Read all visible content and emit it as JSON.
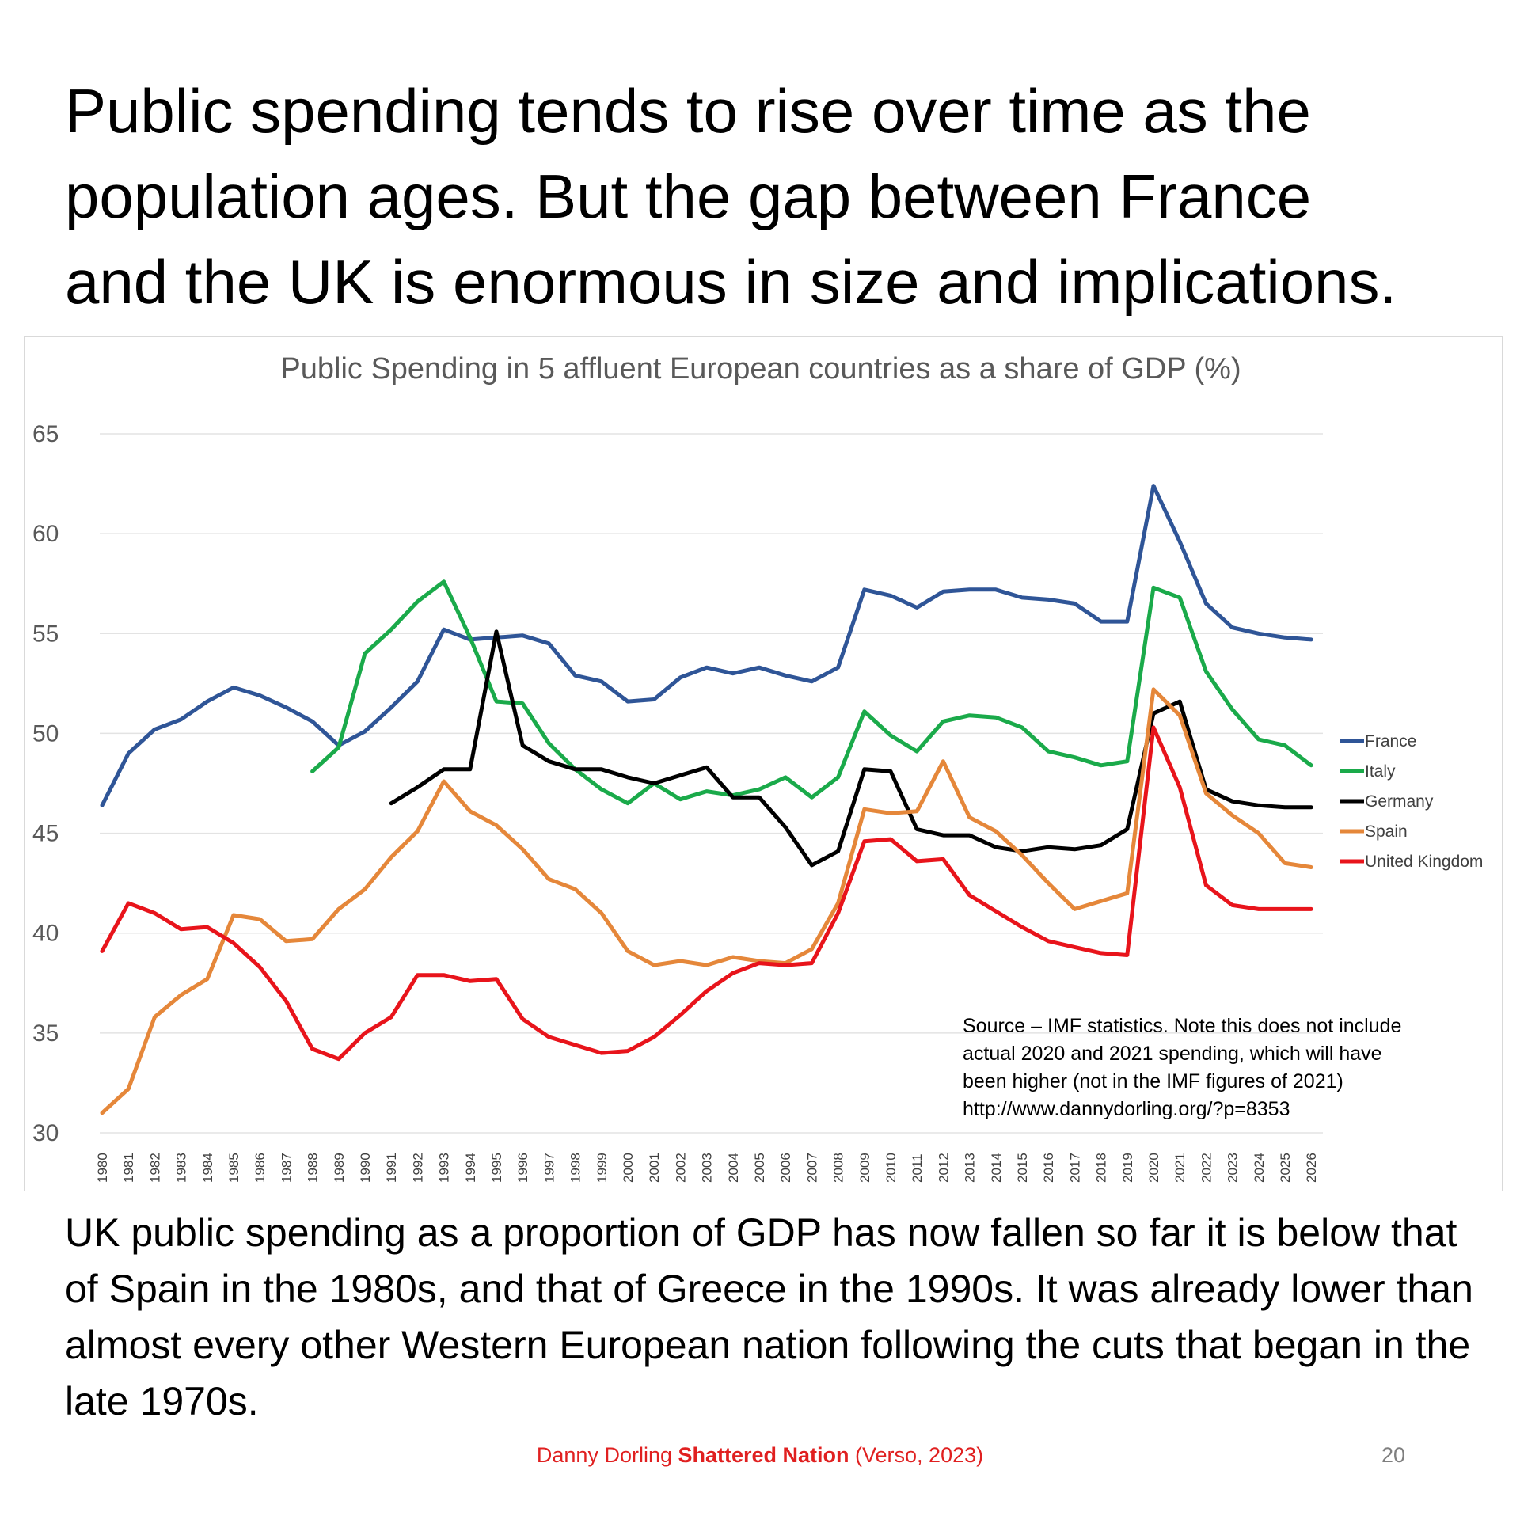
{
  "headline": {
    "line1": "Public spending tends to rise over time as the",
    "line2": "population ages. But the gap between France",
    "line3": "and the UK is enormous in size and implications."
  },
  "body_text": "UK public spending as a proportion of GDP has now fallen so far it is below that of Spain in the 1980s, and that of Greece in the 1990s. It was already lower than almost every other Western European nation following the cuts that began in the late 1970s.",
  "footer": {
    "author": "Danny Dorling ",
    "book": "Shattered Nation",
    "publisher": " (Verso, 2023)",
    "page_number": "20"
  },
  "colors": {
    "France": "#2f5597",
    "Italy": "#1aaa4a",
    "Germany": "#000000",
    "Spain": "#e5873a",
    "United Kingdom": "#e8141b",
    "footer_red": "#e02020"
  },
  "chart_data": {
    "type": "line",
    "title": "Public Spending in 5 affluent European countries as a share of GDP (%)",
    "xlabel": "",
    "ylabel": "",
    "ylim": [
      30,
      65
    ],
    "yticks": [
      "30",
      "35",
      "40",
      "45",
      "50",
      "55",
      "60",
      "65"
    ],
    "grid": true,
    "legend_position": "right",
    "x": [
      "1980",
      "1981",
      "1982",
      "1983",
      "1984",
      "1985",
      "1986",
      "1987",
      "1988",
      "1989",
      "1990",
      "1991",
      "1992",
      "1993",
      "1994",
      "1995",
      "1996",
      "1997",
      "1998",
      "1999",
      "2000",
      "2001",
      "2002",
      "2003",
      "2004",
      "2005",
      "2006",
      "2007",
      "2008",
      "2009",
      "2010",
      "2011",
      "2012",
      "2013",
      "2014",
      "2015",
      "2016",
      "2017",
      "2018",
      "2019",
      "2020",
      "2021",
      "2022",
      "2023",
      "2024",
      "2025",
      "2026"
    ],
    "series": [
      {
        "name": "France",
        "values": [
          46.4,
          49.0,
          50.2,
          50.7,
          51.6,
          52.3,
          51.9,
          51.3,
          50.6,
          49.4,
          50.1,
          51.3,
          52.6,
          55.2,
          54.7,
          54.8,
          54.9,
          54.5,
          52.9,
          52.6,
          51.6,
          51.7,
          52.8,
          53.3,
          53.0,
          53.3,
          52.9,
          52.6,
          53.3,
          57.2,
          56.9,
          56.3,
          57.1,
          57.2,
          57.2,
          56.8,
          56.7,
          56.5,
          55.6,
          55.6,
          62.4,
          59.6,
          56.5,
          55.3,
          55.0,
          54.8,
          54.7
        ]
      },
      {
        "name": "Italy",
        "values": [
          null,
          null,
          null,
          null,
          null,
          null,
          null,
          null,
          48.1,
          49.3,
          54.0,
          55.2,
          56.6,
          57.6,
          54.8,
          51.6,
          51.5,
          49.5,
          48.2,
          47.2,
          46.5,
          47.5,
          46.7,
          47.1,
          46.9,
          47.2,
          47.8,
          46.8,
          47.8,
          51.1,
          49.9,
          49.1,
          50.6,
          50.9,
          50.8,
          50.3,
          49.1,
          48.8,
          48.4,
          48.6,
          57.3,
          56.8,
          53.1,
          51.2,
          49.7,
          49.4,
          48.4
        ]
      },
      {
        "name": "Germany",
        "values": [
          null,
          null,
          null,
          null,
          null,
          null,
          null,
          null,
          null,
          null,
          null,
          46.5,
          47.3,
          48.2,
          48.2,
          55.1,
          49.4,
          48.6,
          48.2,
          48.2,
          47.8,
          47.5,
          47.9,
          48.3,
          46.8,
          46.8,
          45.3,
          43.4,
          44.1,
          48.2,
          48.1,
          45.2,
          44.9,
          44.9,
          44.3,
          44.1,
          44.3,
          44.2,
          44.4,
          45.2,
          51.0,
          51.6,
          47.2,
          46.6,
          46.4,
          46.3,
          46.3
        ]
      },
      {
        "name": "Spain",
        "values": [
          31.0,
          32.2,
          35.8,
          36.9,
          37.7,
          40.9,
          40.7,
          39.6,
          39.7,
          41.2,
          42.2,
          43.8,
          45.1,
          47.6,
          46.1,
          45.4,
          44.2,
          42.7,
          42.2,
          41.0,
          39.1,
          38.4,
          38.6,
          38.4,
          38.8,
          38.6,
          38.5,
          39.2,
          41.5,
          46.2,
          46.0,
          46.1,
          48.6,
          45.8,
          45.1,
          43.9,
          42.5,
          41.2,
          41.6,
          42.0,
          52.2,
          50.9,
          47.0,
          45.9,
          45.0,
          43.5,
          43.3
        ]
      },
      {
        "name": "United Kingdom",
        "values": [
          39.1,
          41.5,
          41.0,
          40.2,
          40.3,
          39.5,
          38.3,
          36.6,
          34.2,
          33.7,
          35.0,
          35.8,
          37.9,
          37.9,
          37.6,
          37.7,
          35.7,
          34.8,
          34.4,
          34.0,
          34.1,
          34.8,
          35.9,
          37.1,
          38.0,
          38.5,
          38.4,
          38.5,
          41.0,
          44.6,
          44.7,
          43.6,
          43.7,
          41.9,
          41.1,
          40.3,
          39.6,
          39.3,
          39.0,
          38.9,
          50.3,
          47.3,
          42.4,
          41.4,
          41.2,
          41.2,
          41.2
        ]
      }
    ],
    "annotation": {
      "line1": "Source – IMF statistics. Note this does not include",
      "line2": "actual 2020 and 2021 spending, which will have",
      "line3": "been higher (not in the IMF figures of 2021)",
      "line4": "http://www.dannydorling.org/?p=8353"
    }
  }
}
